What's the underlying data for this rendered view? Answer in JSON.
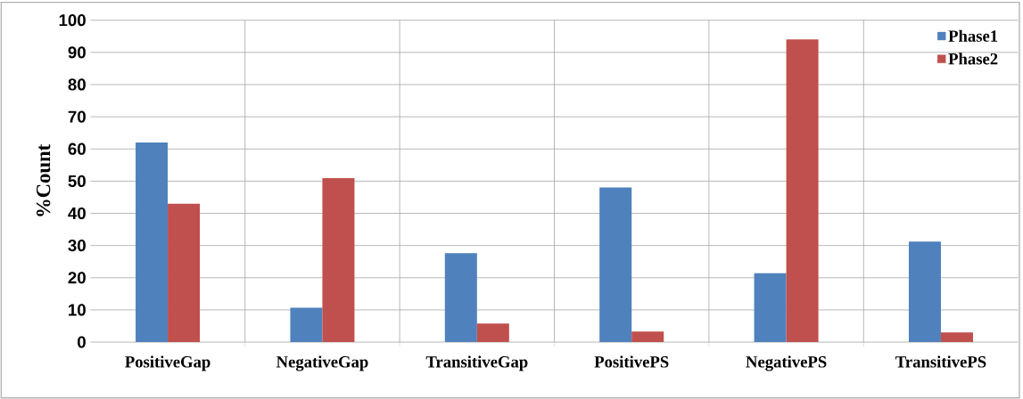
{
  "chart_data": {
    "type": "bar",
    "ylabel": "%Count",
    "categories": [
      "PositiveGap",
      "NegativeGap",
      "TransitiveGap",
      "PositivePS",
      "NegativePS",
      "TransitivePS"
    ],
    "series": [
      {
        "name": "Phase1",
        "color": "#4f81bd",
        "values": [
          62,
          10.7,
          27.6,
          48,
          21.4,
          31.2
        ]
      },
      {
        "name": "Phase2",
        "color": "#c0504d",
        "values": [
          43,
          50.9,
          5.8,
          3.3,
          94,
          3
        ]
      }
    ],
    "ylim": [
      0,
      100
    ],
    "yticks": [
      0,
      10,
      20,
      30,
      40,
      50,
      60,
      70,
      80,
      90,
      100
    ],
    "grid": true,
    "legend": "top right"
  }
}
